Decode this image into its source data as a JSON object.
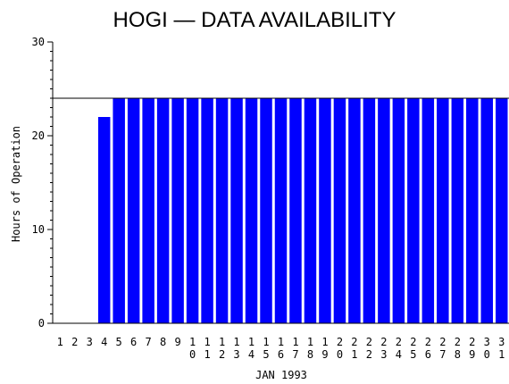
{
  "chart_data": {
    "type": "bar",
    "title": "HOGI — DATA AVAILABILITY",
    "xlabel": "JAN 1993",
    "ylabel": "Hours of Operation",
    "ylim": [
      0,
      30
    ],
    "yticks": [
      "0",
      "10",
      "20",
      "30"
    ],
    "reference_line": 24,
    "categories": [
      "1",
      "2",
      "3",
      "4",
      "5",
      "6",
      "7",
      "8",
      "9",
      "10",
      "11",
      "12",
      "13",
      "14",
      "15",
      "16",
      "17",
      "18",
      "19",
      "20",
      "21",
      "22",
      "23",
      "24",
      "25",
      "26",
      "27",
      "28",
      "29",
      "30",
      "31"
    ],
    "values": [
      0,
      0,
      0,
      22,
      24,
      24,
      24,
      24,
      24,
      24,
      24,
      24,
      24,
      24,
      24,
      24,
      24,
      24,
      24,
      24,
      24,
      24,
      24,
      24,
      24,
      24,
      24,
      24,
      24,
      24,
      24
    ],
    "bar_color": "#0000ff",
    "grid": false,
    "legend": "none"
  }
}
